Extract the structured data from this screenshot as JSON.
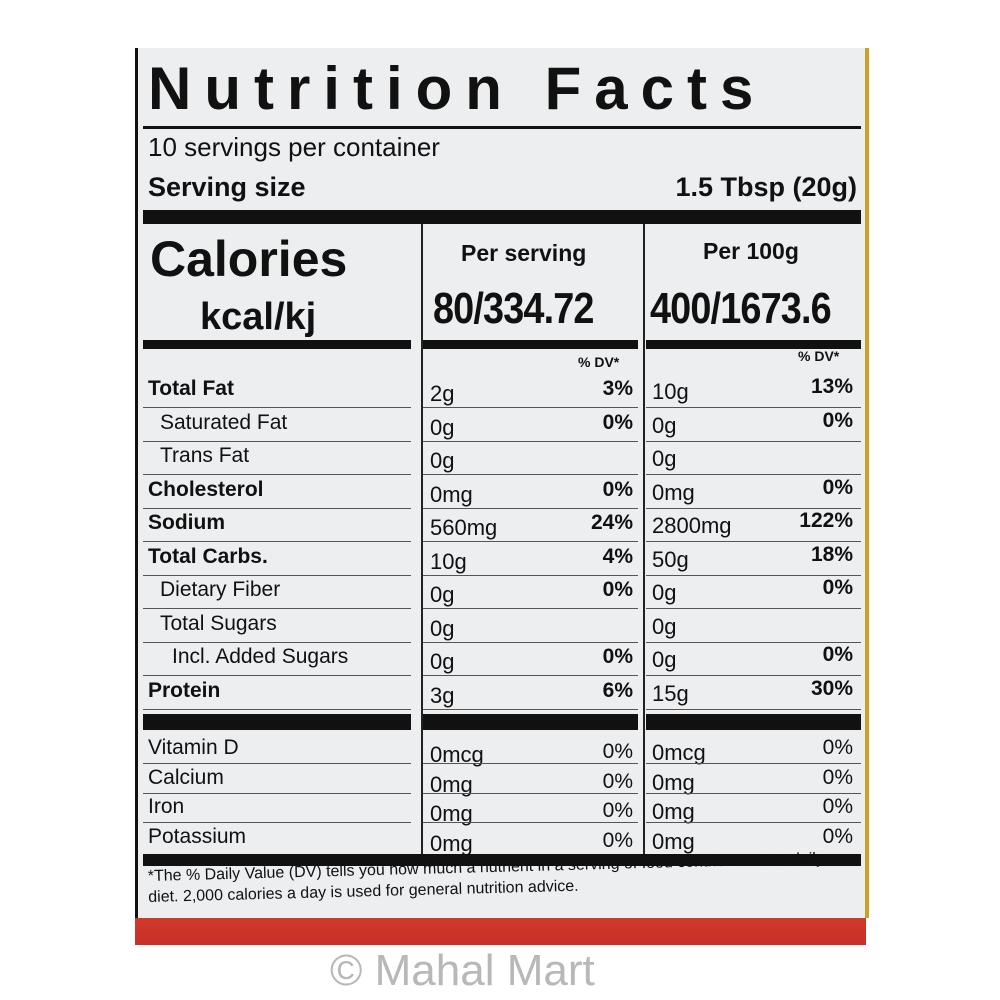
{
  "title": "Nutrition Facts",
  "servings_per_container": "10 servings per container",
  "serving_size_label": "Serving size",
  "serving_size_value": "1.5 Tbsp (20g)",
  "calories_label": "Calories",
  "calories_unit": "kcal/kj",
  "per_serving_label": "Per serving",
  "per_100g_label": "Per 100g",
  "calories_per_serving": "80/334.72",
  "calories_per_100g": "400/1673.6",
  "dv_header": "% DV*",
  "nutrients": [
    {
      "name": "Total Fat",
      "bold": true,
      "indent": 0,
      "serv": "2g",
      "serv_dv": "3%",
      "g100": "10g",
      "g100_dv": "13%"
    },
    {
      "name": "Saturated Fat",
      "bold": false,
      "indent": 1,
      "serv": "0g",
      "serv_dv": "0%",
      "g100": "0g",
      "g100_dv": "0%"
    },
    {
      "name": "Trans Fat",
      "bold": false,
      "indent": 1,
      "serv": "0g",
      "serv_dv": "",
      "g100": "0g",
      "g100_dv": ""
    },
    {
      "name": "Cholesterol",
      "bold": true,
      "indent": 0,
      "serv": "0mg",
      "serv_dv": "0%",
      "g100": "0mg",
      "g100_dv": "0%"
    },
    {
      "name": "Sodium",
      "bold": true,
      "indent": 0,
      "serv": "560mg",
      "serv_dv": "24%",
      "g100": "2800mg",
      "g100_dv": "122%"
    },
    {
      "name": "Total Carbs.",
      "bold": true,
      "indent": 0,
      "serv": "10g",
      "serv_dv": "4%",
      "g100": "50g",
      "g100_dv": "18%"
    },
    {
      "name": "Dietary Fiber",
      "bold": false,
      "indent": 1,
      "serv": "0g",
      "serv_dv": "0%",
      "g100": "0g",
      "g100_dv": "0%"
    },
    {
      "name": "Total Sugars",
      "bold": false,
      "indent": 1,
      "serv": "0g",
      "serv_dv": "",
      "g100": "0g",
      "g100_dv": ""
    },
    {
      "name": "Incl. Added Sugars",
      "bold": false,
      "indent": 2,
      "serv": "0g",
      "serv_dv": "0%",
      "g100": "0g",
      "g100_dv": "0%"
    },
    {
      "name": "Protein",
      "bold": true,
      "indent": 0,
      "serv": "3g",
      "serv_dv": "6%",
      "g100": "15g",
      "g100_dv": "30%"
    }
  ],
  "micros": [
    {
      "name": "Vitamin D",
      "serv": "0mcg",
      "serv_dv": "0%",
      "g100": "0mcg",
      "g100_dv": "0%"
    },
    {
      "name": "Calcium",
      "serv": "0mg",
      "serv_dv": "0%",
      "g100": "0mg",
      "g100_dv": "0%"
    },
    {
      "name": "Iron",
      "serv": "0mg",
      "serv_dv": "0%",
      "g100": "0mg",
      "g100_dv": "0%"
    },
    {
      "name": "Potassium",
      "serv": "0mg",
      "serv_dv": "0%",
      "g100": "0mg",
      "g100_dv": "0%"
    }
  ],
  "footnote": "*The % Daily Value (DV) tells you how much a nutrient in a serving of food contributes to a daily diet. 2,000 calories a day is used for general nutrition advice.",
  "watermark": "© Mahal Mart",
  "colors": {
    "label_bg": "#eceef0",
    "ink": "#111111",
    "gold_border": "#c9a227",
    "red_band": "#d23b2a"
  }
}
